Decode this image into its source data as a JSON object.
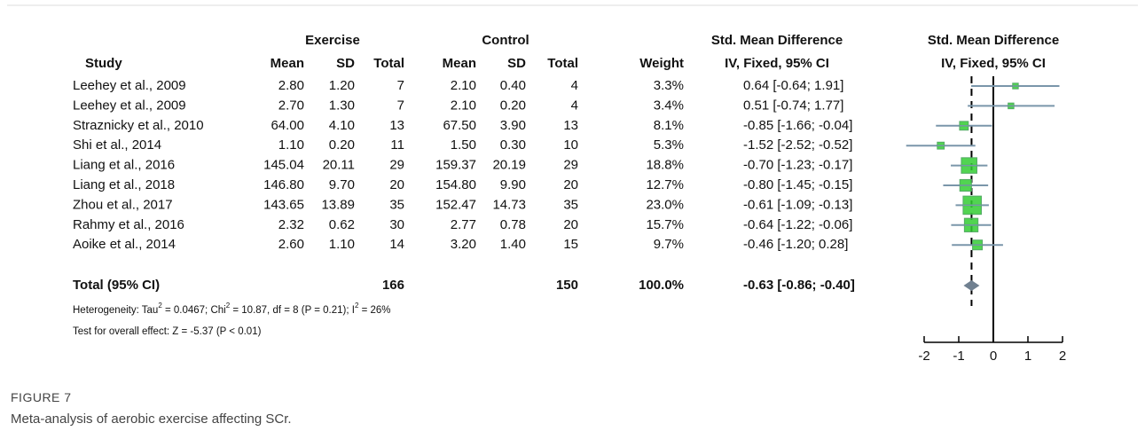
{
  "figure": {
    "headers": {
      "study": "Study",
      "exercise": "Exercise",
      "control": "Control",
      "mean": "Mean",
      "sd": "SD",
      "total": "Total",
      "weight": "Weight",
      "smd": "Std. Mean Difference",
      "method": "IV, Fixed, 95% CI",
      "plot_smd": "Std. Mean Difference",
      "plot_method": "IV, Fixed, 95% CI"
    },
    "rows": [
      {
        "study": "Leehey et al., 2009",
        "e_mean": "2.80",
        "e_sd": "1.20",
        "e_total": "7",
        "c_mean": "2.10",
        "c_sd": "0.40",
        "c_total": "4",
        "weight": 3.3,
        "weight_label": "3.3%",
        "smd": 0.64,
        "lower": -0.64,
        "upper": 1.91,
        "ci_label": "0.64 [-0.64; 1.91]"
      },
      {
        "study": "Leehey et al., 2009",
        "e_mean": "2.70",
        "e_sd": "1.30",
        "e_total": "7",
        "c_mean": "2.10",
        "c_sd": "0.20",
        "c_total": "4",
        "weight": 3.4,
        "weight_label": "3.4%",
        "smd": 0.51,
        "lower": -0.74,
        "upper": 1.77,
        "ci_label": "0.51 [-0.74; 1.77]"
      },
      {
        "study": "Straznicky et al., 2010",
        "e_mean": "64.00",
        "e_sd": "4.10",
        "e_total": "13",
        "c_mean": "67.50",
        "c_sd": "3.90",
        "c_total": "13",
        "weight": 8.1,
        "weight_label": "8.1%",
        "smd": -0.85,
        "lower": -1.66,
        "upper": -0.04,
        "ci_label": "-0.85 [-1.66; -0.04]"
      },
      {
        "study": "Shi et al., 2014",
        "e_mean": "1.10",
        "e_sd": "0.20",
        "e_total": "11",
        "c_mean": "1.50",
        "c_sd": "0.30",
        "c_total": "10",
        "weight": 5.3,
        "weight_label": "5.3%",
        "smd": -1.52,
        "lower": -2.52,
        "upper": -0.52,
        "ci_label": "-1.52 [-2.52; -0.52]"
      },
      {
        "study": "Liang et al., 2016",
        "e_mean": "145.04",
        "e_sd": "20.11",
        "e_total": "29",
        "c_mean": "159.37",
        "c_sd": "20.19",
        "c_total": "29",
        "weight": 18.8,
        "weight_label": "18.8%",
        "smd": -0.7,
        "lower": -1.23,
        "upper": -0.17,
        "ci_label": "-0.70 [-1.23; -0.17]"
      },
      {
        "study": "Liang et al., 2018",
        "e_mean": "146.80",
        "e_sd": "9.70",
        "e_total": "20",
        "c_mean": "154.80",
        "c_sd": "9.90",
        "c_total": "20",
        "weight": 12.7,
        "weight_label": "12.7%",
        "smd": -0.8,
        "lower": -1.45,
        "upper": -0.15,
        "ci_label": "-0.80 [-1.45; -0.15]"
      },
      {
        "study": "Zhou et al., 2017",
        "e_mean": "143.65",
        "e_sd": "13.89",
        "e_total": "35",
        "c_mean": "152.47",
        "c_sd": "14.73",
        "c_total": "35",
        "weight": 23.0,
        "weight_label": "23.0%",
        "smd": -0.61,
        "lower": -1.09,
        "upper": -0.13,
        "ci_label": "-0.61 [-1.09; -0.13]"
      },
      {
        "study": "Rahmy et al., 2016",
        "e_mean": "2.32",
        "e_sd": "0.62",
        "e_total": "30",
        "c_mean": "2.77",
        "c_sd": "0.78",
        "c_total": "20",
        "weight": 15.7,
        "weight_label": "15.7%",
        "smd": -0.64,
        "lower": -1.22,
        "upper": -0.06,
        "ci_label": "-0.64 [-1.22; -0.06]"
      },
      {
        "study": "Aoike et al., 2014",
        "e_mean": "2.60",
        "e_sd": "1.10",
        "e_total": "14",
        "c_mean": "3.20",
        "c_sd": "1.40",
        "c_total": "15",
        "weight": 9.7,
        "weight_label": "9.7%",
        "smd": -0.46,
        "lower": -1.2,
        "upper": 0.28,
        "ci_label": "-0.46 [-1.20; 0.28]"
      }
    ],
    "total": {
      "study": "Total (95% CI)",
      "e_total": "166",
      "c_total": "150",
      "weight_label": "100.0%",
      "smd": -0.63,
      "lower": -0.86,
      "upper": -0.4,
      "ci_label": "-0.63 [-0.86; -0.40]"
    },
    "heterogeneity": [
      "Heterogeneity: Tau",
      "2",
      " = 0.0467; Chi",
      "2",
      " = 10.87, df = 8 (P = 0.21); I",
      "2",
      " = 26%"
    ],
    "overall_effect": "Test for overall effect: Z = -5.37 (P < 0.01)",
    "xlim": [
      -2,
      2
    ],
    "xticks": [
      -2,
      -1,
      0,
      1,
      2
    ],
    "box_color": "#33cc33",
    "line_color": "#7a96aa",
    "diamond_color": "#708090"
  },
  "caption": {
    "label": "FIGURE 7",
    "text": "Meta-analysis of aerobic exercise affecting SCr."
  }
}
